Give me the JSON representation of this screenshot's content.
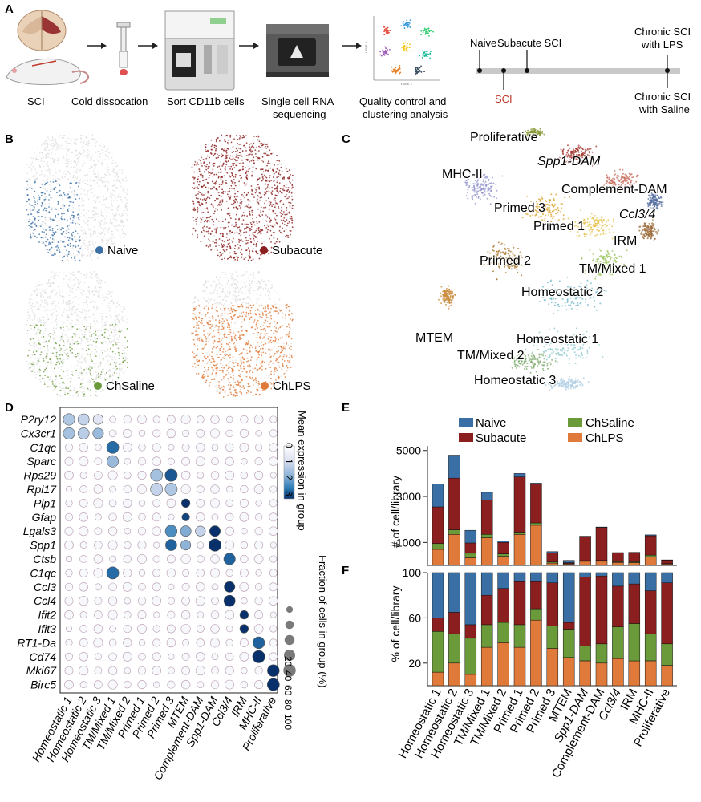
{
  "panels": {
    "A": "A",
    "B": "B",
    "C": "C",
    "D": "D",
    "E": "E",
    "F": "F"
  },
  "workflow": {
    "steps": [
      "SCI",
      "Cold dissocation",
      "Sort CD11b cells",
      "Single cell RNA",
      "sequencing",
      "Quality control and",
      "clustering analysis"
    ],
    "plot_axis_y": "t-SNE 2",
    "plot_axis_x": "t-SNE 1"
  },
  "timeline": {
    "naive": "Naive",
    "sci": "SCI",
    "subacute": "Subacute SCI",
    "lps_line1": "Chronic SCI",
    "lps_line2": "with LPS",
    "saline_line1": "Chronic SCI",
    "saline_line2": "with Saline"
  },
  "umap_groups": [
    {
      "label": "Naive",
      "color": "#3a6fa6"
    },
    {
      "label": "Subacute",
      "color": "#8b1e1e"
    },
    {
      "label": "ChSaline",
      "color": "#6a9a3a"
    },
    {
      "label": "ChLPS",
      "color": "#e07a3a"
    }
  ],
  "clusters": [
    {
      "label": "Proliferative"
    },
    {
      "label": "Spp1-DAM"
    },
    {
      "label": "MHC-II"
    },
    {
      "label": "Complement-DAM"
    },
    {
      "label": "Primed 3"
    },
    {
      "label": "Ccl3/4"
    },
    {
      "label": "Primed 1"
    },
    {
      "label": "IRM"
    },
    {
      "label": "Primed 2"
    },
    {
      "label": "TM/Mixed 1"
    },
    {
      "label": "Homeostatic 2"
    },
    {
      "label": "MTEM"
    },
    {
      "label": "Homeostatic 1"
    },
    {
      "label": "TM/Mixed 2"
    },
    {
      "label": "Homeostatic 3"
    }
  ],
  "colors": {
    "naive": "#3a6fa6",
    "subacute": "#8b1e1e",
    "chsaline": "#6a9a3a",
    "chlps": "#e07a3a",
    "timeline_sci": "#c0392b"
  },
  "chart_data": [
    {
      "type": "dotplot",
      "title": "",
      "genes": [
        "P2ry12",
        "Cx3cr1",
        "C1qc",
        "Sparc",
        "Rps29",
        "Rpl17",
        "Plp1",
        "Gfap",
        "Lgals3",
        "Spp1",
        "Ctsb",
        "C1qc",
        "Ccl3",
        "Ccl4",
        "Ifit2",
        "Ifit3",
        "RT1-Da",
        "Cd74",
        "Mki67",
        "Birc5"
      ],
      "clusters": [
        "Homeostatic 1",
        "Homeostatic 2",
        "Homeostatic 3",
        "TM/Mixed 1",
        "TM/Mixed 2",
        "Primed 1",
        "Primed 2",
        "Primed 3",
        "MTEM",
        "Complement-DAM",
        "Spp1-DAM",
        "Ccl3/4",
        "IRM",
        "MHC-II",
        "Proliferative"
      ],
      "colorbar_label": "Mean expression in group",
      "colorbar_ticks": [
        "0",
        "1",
        "2",
        "3"
      ],
      "size_label": "Fraction of cells in group (%)",
      "size_ticks": [
        "20",
        "40",
        "60",
        "80",
        "100"
      ],
      "highlights": [
        {
          "gene": "P2ry12",
          "cluster": "Homeostatic 1",
          "expr": 1.2,
          "frac": 85
        },
        {
          "gene": "P2ry12",
          "cluster": "Homeostatic 2",
          "expr": 1.0,
          "frac": 80
        },
        {
          "gene": "P2ry12",
          "cluster": "Homeostatic 3",
          "expr": 0.7,
          "frac": 60
        },
        {
          "gene": "Cx3cr1",
          "cluster": "Homeostatic 1",
          "expr": 1.3,
          "frac": 85
        },
        {
          "gene": "Cx3cr1",
          "cluster": "Homeostatic 2",
          "expr": 1.1,
          "frac": 80
        },
        {
          "gene": "Cx3cr1",
          "cluster": "Homeostatic 3",
          "expr": 1.4,
          "frac": 70
        },
        {
          "gene": "C1qc",
          "cluster": "TM/Mixed 1",
          "expr": 2.2,
          "frac": 95
        },
        {
          "gene": "Sparc",
          "cluster": "TM/Mixed 1",
          "expr": 1.4,
          "frac": 85
        },
        {
          "gene": "Rps29",
          "cluster": "Primed 2",
          "expr": 1.3,
          "frac": 95
        },
        {
          "gene": "Rps29",
          "cluster": "Primed 3",
          "expr": 2.6,
          "frac": 98
        },
        {
          "gene": "Rpl17",
          "cluster": "Primed 2",
          "expr": 1.0,
          "frac": 95
        },
        {
          "gene": "Rpl17",
          "cluster": "Primed 3",
          "expr": 1.2,
          "frac": 95
        },
        {
          "gene": "Plp1",
          "cluster": "MTEM",
          "expr": 3.0,
          "frac": 40
        },
        {
          "gene": "Gfap",
          "cluster": "MTEM",
          "expr": 2.8,
          "frac": 30
        },
        {
          "gene": "Lgals3",
          "cluster": "Primed 3",
          "expr": 2.0,
          "frac": 90
        },
        {
          "gene": "Lgals3",
          "cluster": "MTEM",
          "expr": 1.6,
          "frac": 70
        },
        {
          "gene": "Lgals3",
          "cluster": "Spp1-DAM",
          "expr": 3.0,
          "frac": 70
        },
        {
          "gene": "Lgals3",
          "cluster": "Complement-DAM",
          "expr": 1.0,
          "frac": 60
        },
        {
          "gene": "Spp1",
          "cluster": "Primed 3",
          "expr": 2.5,
          "frac": 80
        },
        {
          "gene": "Spp1",
          "cluster": "Spp1-DAM",
          "expr": 3.0,
          "frac": 100
        },
        {
          "gene": "Spp1",
          "cluster": "MTEM",
          "expr": 1.5,
          "frac": 60
        },
        {
          "gene": "Ctsb",
          "cluster": "Ccl3/4",
          "expr": 2.5,
          "frac": 85
        },
        {
          "gene": "C1qc",
          "cluster": "TM/Mixed 1",
          "expr": 2.4,
          "frac": 95
        },
        {
          "gene": "Ccl3",
          "cluster": "Ccl3/4",
          "expr": 3.0,
          "frac": 70
        },
        {
          "gene": "Ccl4",
          "cluster": "Ccl3/4",
          "expr": 3.0,
          "frac": 80
        },
        {
          "gene": "Ifit2",
          "cluster": "IRM",
          "expr": 3.0,
          "frac": 40
        },
        {
          "gene": "Ifit3",
          "cluster": "IRM",
          "expr": 3.0,
          "frac": 40
        },
        {
          "gene": "RT1-Da",
          "cluster": "MHC-II",
          "expr": 2.5,
          "frac": 90
        },
        {
          "gene": "Cd74",
          "cluster": "MHC-II",
          "expr": 3.0,
          "frac": 100
        },
        {
          "gene": "Mki67",
          "cluster": "Proliferative",
          "expr": 3.0,
          "frac": 90
        },
        {
          "gene": "Birc5",
          "cluster": "Proliferative",
          "expr": 3.0,
          "frac": 95
        }
      ]
    },
    {
      "type": "bar",
      "stacked": true,
      "ylabel": "# of cell/library",
      "yticks": [
        "1000",
        "3000",
        "5000"
      ],
      "ylim": [
        0,
        5200
      ],
      "categories": [
        "Homeostatic 1",
        "Homeostatic 2",
        "Homeostatic 3",
        "TM/Mixed 1",
        "TM/Mixed 2",
        "Primed 1",
        "Primed 2",
        "Primed 3",
        "MTEM",
        "Spp1-DAM",
        "Complement-DAM",
        "Ccl3/4",
        "IRM",
        "MHC-II",
        "Proliferative"
      ],
      "legend": [
        "Naive",
        "Subacute",
        "ChSaline",
        "ChLPS"
      ],
      "series": [
        {
          "name": "ChLPS",
          "values": [
            700,
            1350,
            330,
            1200,
            400,
            1350,
            1750,
            100,
            60,
            180,
            180,
            130,
            120,
            380,
            60
          ]
        },
        {
          "name": "ChSaline",
          "values": [
            250,
            200,
            200,
            150,
            100,
            100,
            100,
            50,
            20,
            30,
            40,
            30,
            40,
            70,
            20
          ]
        },
        {
          "name": "Subacute",
          "values": [
            1600,
            2250,
            450,
            1500,
            500,
            2400,
            1700,
            400,
            40,
            1050,
            1430,
            380,
            400,
            840,
            150
          ]
        },
        {
          "name": "Naive",
          "values": [
            1000,
            1000,
            550,
            330,
            70,
            150,
            30,
            50,
            100,
            10,
            20,
            20,
            10,
            40,
            10
          ]
        }
      ]
    },
    {
      "type": "bar",
      "stacked": true,
      "ylabel": "% of cell/library",
      "yticks": [
        "20",
        "60",
        "100"
      ],
      "ylim": [
        0,
        100
      ],
      "categories": [
        "Homeostatic 1",
        "Homeostatic 2",
        "Homeostatic 3",
        "TM/Mixed 1",
        "TM/Mixed 2",
        "Primed 1",
        "Primed 2",
        "Primed 3",
        "MTEM",
        "Spp1-DAM",
        "Complement-DAM",
        "Ccl3/4",
        "IRM",
        "MHC-II",
        "Proliferative"
      ],
      "series": [
        {
          "name": "ChLPS",
          "values": [
            12,
            20,
            10,
            34,
            38,
            34,
            58,
            33,
            25,
            22,
            20,
            24,
            22,
            22,
            18
          ]
        },
        {
          "name": "ChSaline",
          "values": [
            36,
            26,
            32,
            20,
            18,
            20,
            10,
            20,
            25,
            13,
            17,
            28,
            33,
            24,
            19
          ]
        },
        {
          "name": "Subacute",
          "values": [
            12,
            19,
            12,
            26,
            30,
            38,
            24,
            38,
            6,
            61,
            60,
            36,
            35,
            38,
            54
          ]
        },
        {
          "name": "Naive",
          "values": [
            40,
            35,
            46,
            20,
            14,
            8,
            8,
            9,
            44,
            4,
            3,
            12,
            10,
            16,
            9
          ]
        }
      ]
    }
  ]
}
